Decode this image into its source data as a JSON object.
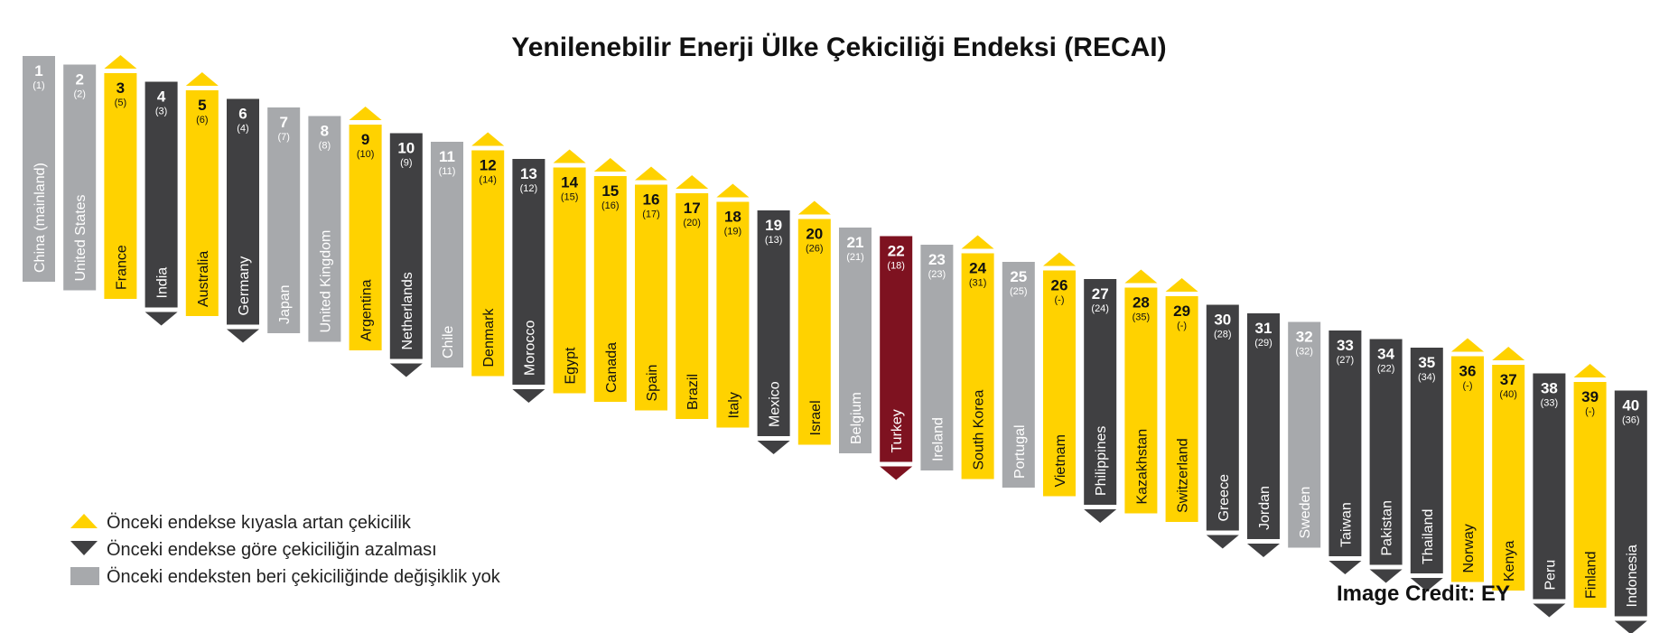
{
  "colors": {
    "up": "#FFD200",
    "down": "#404042",
    "same": "#A7A9AC",
    "highlight": "#7E1220"
  },
  "chart_data": {
    "type": "bar",
    "title": "Yenilenebilir Enerji Ülke Çekiciliği Endeksi (RECAI)",
    "legend": [
      {
        "key": "up",
        "icon": "triangle-up-icon",
        "label": "Önceki endekse kıyasla artan çekicilik"
      },
      {
        "key": "down",
        "icon": "triangle-down-icon",
        "label": "Önceki endekse göre çekiciliğin azalması"
      },
      {
        "key": "same",
        "icon": "square-icon",
        "label": "Önceki endeksten beri çekiciliğinde değişiklik yok"
      }
    ],
    "countries": [
      {
        "rank": "1",
        "prev": "(1)",
        "name": "China (mainland)",
        "trend": "same"
      },
      {
        "rank": "2",
        "prev": "(2)",
        "name": "United States",
        "trend": "same"
      },
      {
        "rank": "3",
        "prev": "(5)",
        "name": "France",
        "trend": "up"
      },
      {
        "rank": "4",
        "prev": "(3)",
        "name": "India",
        "trend": "down"
      },
      {
        "rank": "5",
        "prev": "(6)",
        "name": "Australia",
        "trend": "up"
      },
      {
        "rank": "6",
        "prev": "(4)",
        "name": "Germany",
        "trend": "down"
      },
      {
        "rank": "7",
        "prev": "(7)",
        "name": "Japan",
        "trend": "same"
      },
      {
        "rank": "8",
        "prev": "(8)",
        "name": "United Kingdom",
        "trend": "same"
      },
      {
        "rank": "9",
        "prev": "(10)",
        "name": "Argentina",
        "trend": "up"
      },
      {
        "rank": "10",
        "prev": "(9)",
        "name": "Netherlands",
        "trend": "down"
      },
      {
        "rank": "11",
        "prev": "(11)",
        "name": "Chile",
        "trend": "same"
      },
      {
        "rank": "12",
        "prev": "(14)",
        "name": "Denmark",
        "trend": "up"
      },
      {
        "rank": "13",
        "prev": "(12)",
        "name": "Morocco",
        "trend": "down"
      },
      {
        "rank": "14",
        "prev": "(15)",
        "name": "Egypt",
        "trend": "up"
      },
      {
        "rank": "15",
        "prev": "(16)",
        "name": "Canada",
        "trend": "up"
      },
      {
        "rank": "16",
        "prev": "(17)",
        "name": "Spain",
        "trend": "up"
      },
      {
        "rank": "17",
        "prev": "(20)",
        "name": "Brazil",
        "trend": "up"
      },
      {
        "rank": "18",
        "prev": "(19)",
        "name": "Italy",
        "trend": "up"
      },
      {
        "rank": "19",
        "prev": "(13)",
        "name": "Mexico",
        "trend": "down"
      },
      {
        "rank": "20",
        "prev": "(26)",
        "name": "Israel",
        "trend": "up"
      },
      {
        "rank": "21",
        "prev": "(21)",
        "name": "Belgium",
        "trend": "same"
      },
      {
        "rank": "22",
        "prev": "(18)",
        "name": "Turkey",
        "trend": "down",
        "highlight": true
      },
      {
        "rank": "23",
        "prev": "(23)",
        "name": "Ireland",
        "trend": "same"
      },
      {
        "rank": "24",
        "prev": "(31)",
        "name": "South Korea",
        "trend": "up"
      },
      {
        "rank": "25",
        "prev": "(25)",
        "name": "Portugal",
        "trend": "same"
      },
      {
        "rank": "26",
        "prev": "(-)",
        "name": "Vietnam",
        "trend": "up"
      },
      {
        "rank": "27",
        "prev": "(24)",
        "name": "Philippines",
        "trend": "down"
      },
      {
        "rank": "28",
        "prev": "(35)",
        "name": "Kazakhstan",
        "trend": "up"
      },
      {
        "rank": "29",
        "prev": "(-)",
        "name": "Switzerland",
        "trend": "up"
      },
      {
        "rank": "30",
        "prev": "(28)",
        "name": "Greece",
        "trend": "down"
      },
      {
        "rank": "31",
        "prev": "(29)",
        "name": "Jordan",
        "trend": "down"
      },
      {
        "rank": "32",
        "prev": "(32)",
        "name": "Sweden",
        "trend": "same"
      },
      {
        "rank": "33",
        "prev": "(27)",
        "name": "Taiwan",
        "trend": "down"
      },
      {
        "rank": "34",
        "prev": "(22)",
        "name": "Pakistan",
        "trend": "down"
      },
      {
        "rank": "35",
        "prev": "(34)",
        "name": "Thailand",
        "trend": "down"
      },
      {
        "rank": "36",
        "prev": "(-)",
        "name": "Norway",
        "trend": "up"
      },
      {
        "rank": "37",
        "prev": "(40)",
        "name": "Kenya",
        "trend": "up"
      },
      {
        "rank": "38",
        "prev": "(33)",
        "name": "Peru",
        "trend": "down"
      },
      {
        "rank": "39",
        "prev": "(-)",
        "name": "Finland",
        "trend": "up"
      },
      {
        "rank": "40",
        "prev": "(36)",
        "name": "Indonesia",
        "trend": "down"
      }
    ]
  },
  "credit": "Image Credit: EY"
}
